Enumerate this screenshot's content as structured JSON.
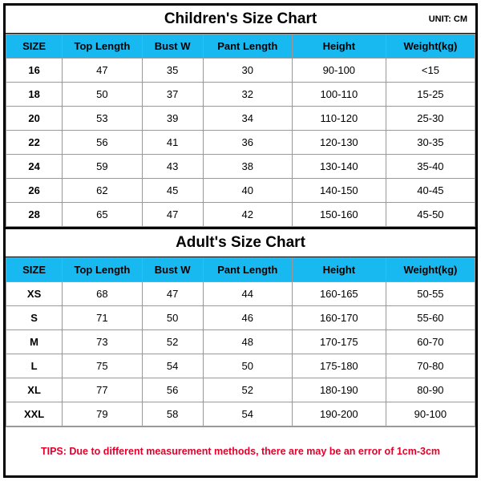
{
  "children": {
    "title": "Children's Size Chart",
    "unit": "UNIT: CM",
    "header_bg": "#18b8f0",
    "columns": [
      "SIZE",
      "Top Length",
      "Bust W",
      "Pant Length",
      "Height",
      "Weight(kg)"
    ],
    "rows": [
      [
        "16",
        "47",
        "35",
        "30",
        "90-100",
        "<15"
      ],
      [
        "18",
        "50",
        "37",
        "32",
        "100-110",
        "15-25"
      ],
      [
        "20",
        "53",
        "39",
        "34",
        "110-120",
        "25-30"
      ],
      [
        "22",
        "56",
        "41",
        "36",
        "120-130",
        "30-35"
      ],
      [
        "24",
        "59",
        "43",
        "38",
        "130-140",
        "35-40"
      ],
      [
        "26",
        "62",
        "45",
        "40",
        "140-150",
        "40-45"
      ],
      [
        "28",
        "65",
        "47",
        "42",
        "150-160",
        "45-50"
      ]
    ]
  },
  "adult": {
    "title": "Adult's Size Chart",
    "header_bg": "#18b8f0",
    "columns": [
      "SIZE",
      "Top Length",
      "Bust W",
      "Pant Length",
      "Height",
      "Weight(kg)"
    ],
    "rows": [
      [
        "XS",
        "68",
        "47",
        "44",
        "160-165",
        "50-55"
      ],
      [
        "S",
        "71",
        "50",
        "46",
        "160-170",
        "55-60"
      ],
      [
        "M",
        "73",
        "52",
        "48",
        "170-175",
        "60-70"
      ],
      [
        "L",
        "75",
        "54",
        "50",
        "175-180",
        "70-80"
      ],
      [
        "XL",
        "77",
        "56",
        "52",
        "180-190",
        "80-90"
      ],
      [
        "XXL",
        "79",
        "58",
        "54",
        "190-200",
        "90-100"
      ]
    ]
  },
  "tips": "TIPS: Due to different measurement methods, there are may be an error of 1cm-3cm",
  "tips_color": "#e4002b",
  "border_color": "#999999",
  "outer_border": "#000000",
  "background": "#ffffff",
  "col_widths_pct": [
    12,
    17,
    13,
    19,
    20,
    19
  ]
}
